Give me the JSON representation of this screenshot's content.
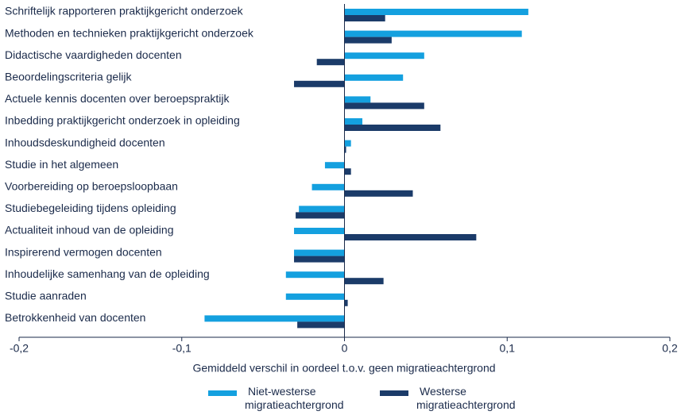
{
  "chart_data": {
    "type": "hbar",
    "xlabel": "Gemiddeld verschil in oordeel t.o.v. geen migratieachtergrond",
    "categories": [
      "Schriftelijk rapporteren praktijkgericht onderzoek",
      "Methoden en technieken praktijkgericht onderzoek",
      "Didactische vaardigheden docenten",
      "Beoordelingscriteria gelijk",
      "Actuele kennis docenten over beroepspraktijk",
      "Inbedding praktijkgericht onderzoek in opleiding",
      "Inhoudsdeskundigheid docenten",
      "Studie in het algemeen",
      "Voorbereiding op beroepsloopbaan",
      "Studiebegeleiding tijdens opleiding",
      "Actualiteit inhoud van de opleiding",
      "Inspirerend vermogen docenten",
      "Inhoudelijke samenhang van de opleiding",
      "Studie aanraden",
      "Betrokkenheid van docenten"
    ],
    "series": [
      {
        "name": "Niet-westerse migratieachtergrond",
        "color": "#14a0df",
        "values": [
          0.113,
          0.109,
          0.049,
          0.036,
          0.016,
          0.011,
          0.004,
          -0.012,
          -0.02,
          -0.028,
          -0.031,
          -0.031,
          -0.036,
          -0.036,
          -0.086
        ]
      },
      {
        "name": "Westerse migratieachtergrond",
        "color": "#1b3b69",
        "values": [
          0.025,
          0.029,
          -0.017,
          -0.031,
          0.049,
          0.059,
          0.001,
          0.004,
          0.042,
          -0.03,
          0.081,
          -0.031,
          0.024,
          0.002,
          -0.029
        ]
      }
    ],
    "xlim": [
      -0.2,
      0.2
    ],
    "xticks": [
      {
        "value": -0.2,
        "label": "-0,2"
      },
      {
        "value": -0.1,
        "label": "-0,1"
      },
      0,
      {
        "value": 0.1,
        "label": "0,1"
      },
      {
        "value": 0.2,
        "label": "0,2"
      }
    ]
  }
}
